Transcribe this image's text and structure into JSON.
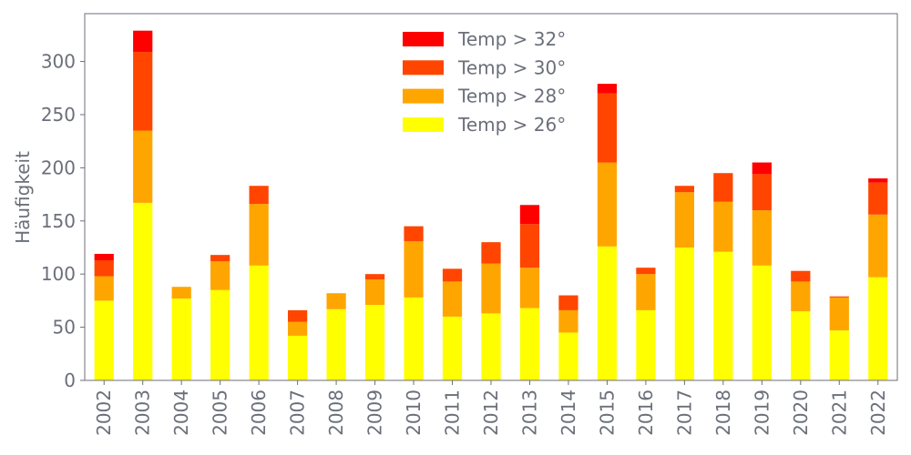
{
  "chart_data": {
    "type": "bar",
    "stacked": true,
    "title": "",
    "xlabel": "",
    "ylabel": "Häufigkeit",
    "ylim": [
      0,
      345
    ],
    "yticks": [
      0,
      50,
      100,
      150,
      200,
      250,
      300
    ],
    "grid": false,
    "legend_position": "top-center",
    "categories": [
      "2002",
      "2003",
      "2004",
      "2005",
      "2006",
      "2007",
      "2008",
      "2009",
      "2010",
      "2011",
      "2012",
      "2013",
      "2014",
      "2015",
      "2016",
      "2017",
      "2018",
      "2019",
      "2020",
      "2021",
      "2022"
    ],
    "series": [
      {
        "name": "Temp > 26°",
        "color": "#ffff00",
        "values": [
          75,
          167,
          77,
          85,
          108,
          42,
          67,
          71,
          78,
          60,
          63,
          68,
          45,
          126,
          66,
          125,
          121,
          108,
          65,
          47,
          97
        ]
      },
      {
        "name": "Temp > 28°",
        "color": "#ffa500",
        "values": [
          23,
          68,
          11,
          27,
          58,
          13,
          15,
          24,
          53,
          33,
          47,
          38,
          21,
          79,
          34,
          52,
          47,
          52,
          28,
          31,
          59
        ]
      },
      {
        "name": "Temp > 30°",
        "color": "#ff4500",
        "values": [
          15,
          74,
          0,
          6,
          17,
          11,
          0,
          5,
          14,
          12,
          20,
          41,
          14,
          65,
          6,
          6,
          27,
          34,
          10,
          1,
          30
        ]
      },
      {
        "name": "Temp > 32°",
        "color": "#ff0000",
        "values": [
          6,
          20,
          0,
          0,
          0,
          0,
          0,
          0,
          0,
          0,
          0,
          18,
          0,
          9,
          0,
          0,
          0,
          11,
          0,
          0,
          4
        ]
      }
    ]
  }
}
